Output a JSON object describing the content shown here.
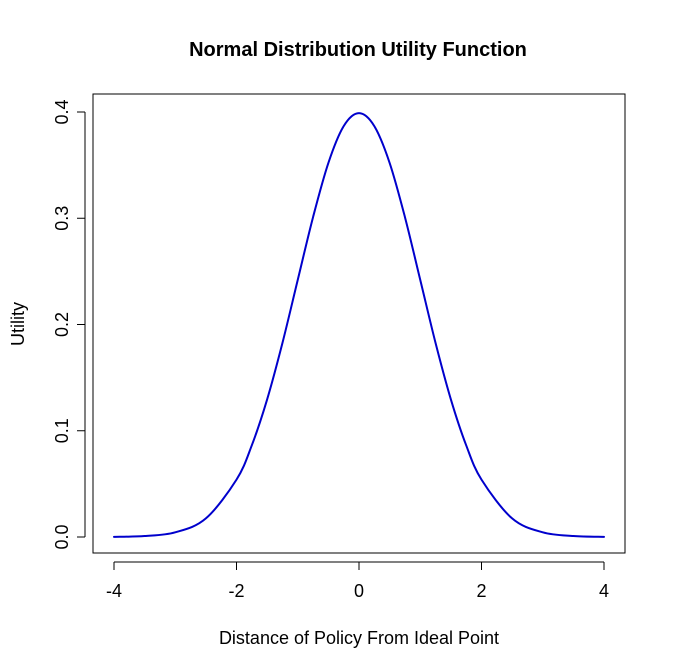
{
  "chart_data": {
    "type": "line",
    "title": "Normal Distribution Utility Function",
    "xlabel": "Distance of Policy From Ideal Point",
    "ylabel": "Utility",
    "xlim": [
      -4,
      4
    ],
    "ylim": [
      0,
      0.4
    ],
    "xticks": [
      "-4",
      "-2",
      "0",
      "2",
      "4"
    ],
    "yticks": [
      "0.0",
      "0.1",
      "0.2",
      "0.3",
      "0.4"
    ],
    "grid": false,
    "series": [
      {
        "color": "#0000cc",
        "x": [
          -4.0,
          -3.5,
          -3.0,
          -2.5,
          -2.0,
          -1.75,
          -1.5,
          -1.25,
          -1.0,
          -0.75,
          -0.5,
          -0.25,
          0.0,
          0.25,
          0.5,
          0.75,
          1.0,
          1.25,
          1.5,
          1.75,
          2.0,
          2.5,
          3.0,
          3.5,
          4.0
        ],
        "y": [
          0.0001,
          0.0009,
          0.0044,
          0.0175,
          0.054,
          0.0863,
          0.1295,
          0.1826,
          0.242,
          0.3011,
          0.3521,
          0.3867,
          0.3989,
          0.3867,
          0.3521,
          0.3011,
          0.242,
          0.1826,
          0.1295,
          0.0863,
          0.054,
          0.0175,
          0.0044,
          0.0009,
          0.0001
        ]
      }
    ]
  }
}
